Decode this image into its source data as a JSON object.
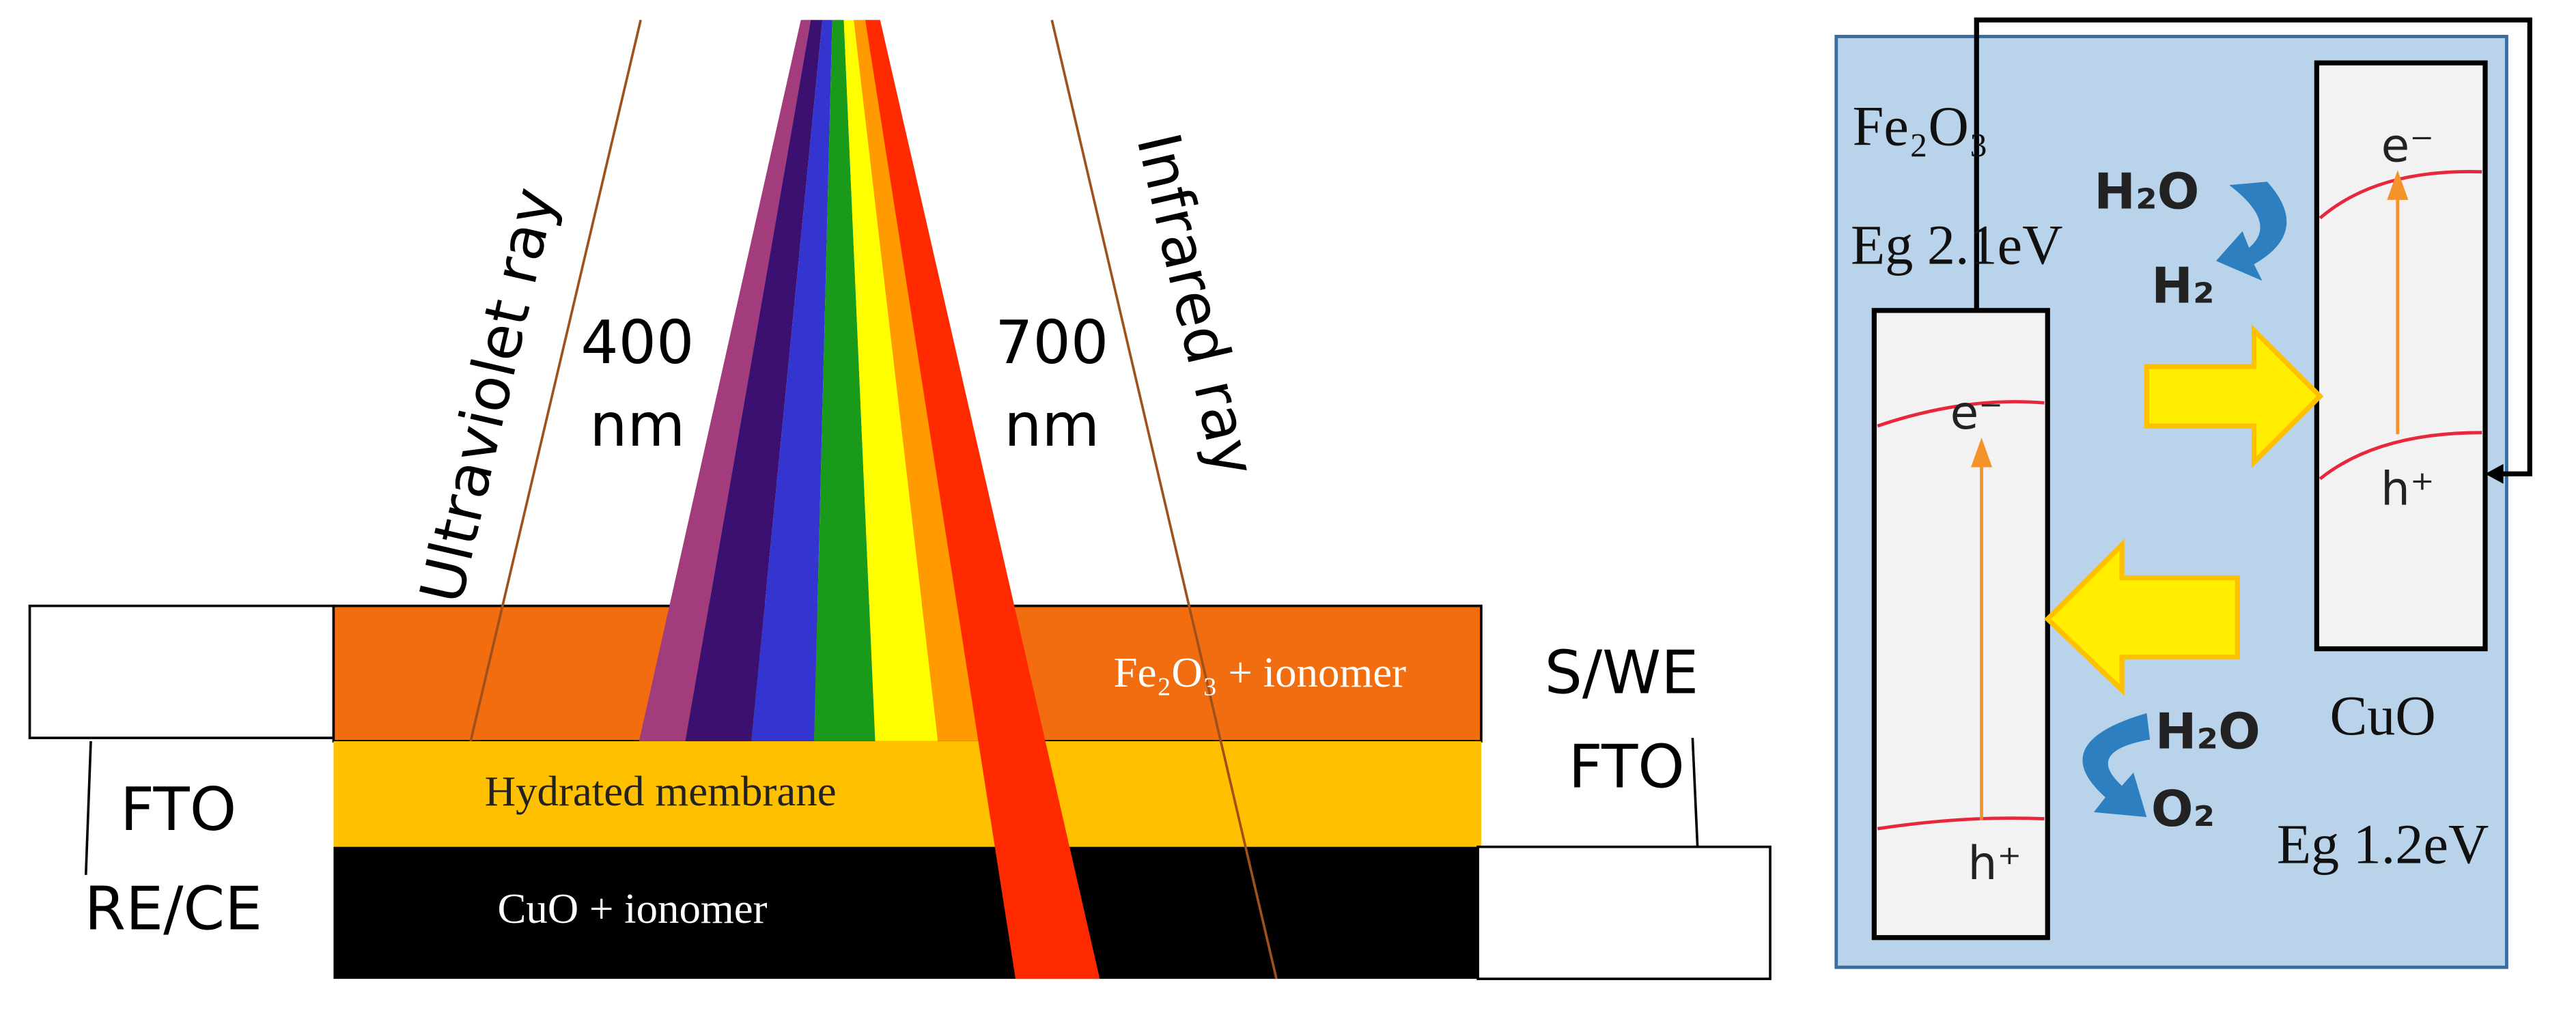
{
  "left_panel": {
    "ray_uv": "Ultraviolet ray",
    "ray_ir": "Infrared ray",
    "wl_400": "400",
    "wl_400_unit": "nm",
    "wl_700": "700",
    "wl_700_unit": "nm",
    "layer_top": "Fe₂O₃ + ionomer",
    "layer_mid": "Hydrated membrane",
    "layer_bottom": "CuO + ionomer",
    "left_label_1": "FTO",
    "left_label_2": "RE/CE",
    "right_label_1": "S/WE",
    "right_label_2": "FTO"
  },
  "right_panel": {
    "fe2o3_name": "Fe₂O₃",
    "fe2o3_gap": "Eg 2.1eV",
    "fe2o3_electron": "e⁻",
    "fe2o3_hole": "h⁺",
    "cuo_name": "CuO",
    "cuo_gap": "Eg 1.2eV",
    "cuo_electron": "e⁻",
    "cuo_hole": "h⁺",
    "water_top": "H₂O",
    "hydrogen": "H₂",
    "water_bottom": "H₂O",
    "oxygen": "O₂"
  }
}
